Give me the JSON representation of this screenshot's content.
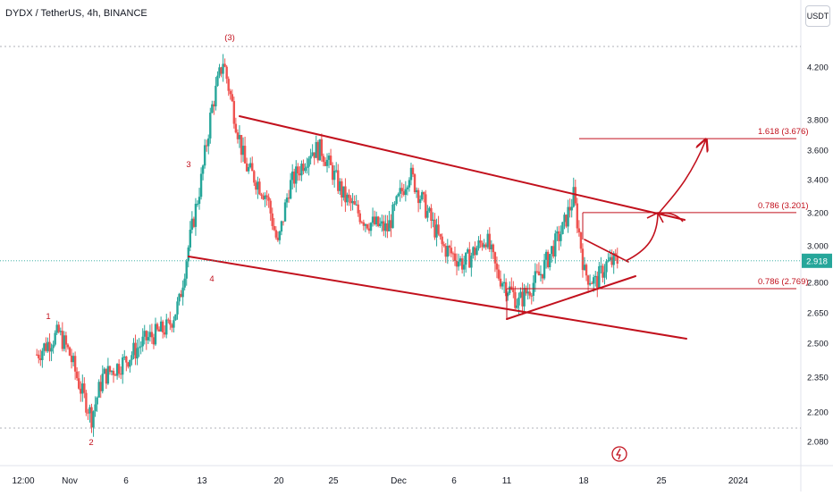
{
  "header": {
    "title": "DYDX / TetherUS, 4h, BINANCE",
    "currency_button": "USDT"
  },
  "price_axis": {
    "ticks": [
      "4.200",
      "3.800",
      "3.600",
      "3.400",
      "3.200",
      "3.000",
      "2.800",
      "2.650",
      "2.500",
      "2.350",
      "2.200",
      "2.080"
    ],
    "current_price": "2.918"
  },
  "time_axis": {
    "ticks": [
      "12:00",
      "Nov",
      "6",
      "13",
      "20",
      "25",
      "Dec",
      "6",
      "11",
      "18",
      "25",
      "2024"
    ]
  },
  "waves": {
    "w1": "1",
    "w2": "2",
    "w3": "3",
    "w4": "4",
    "wave3_top": "(3)"
  },
  "fib_levels": [
    {
      "label": "1.618 (3.676)",
      "price": 3.676
    },
    {
      "label": "0.786 (3.201)",
      "price": 3.201
    },
    {
      "label": "0.786 (2.769)",
      "price": 2.769
    }
  ],
  "colors": {
    "up": "#26a69a",
    "down": "#ef5350",
    "annotation": "#c2111d",
    "current": "#26a69a"
  },
  "chart_data": {
    "type": "candlestick",
    "title": "DYDX / TetherUS, 4h, BINANCE",
    "x_labels": [
      "12:00",
      "Nov",
      "6",
      "13",
      "20",
      "25",
      "Dec",
      "6",
      "11",
      "18",
      "25",
      "2024"
    ],
    "y_ticks": [
      4.2,
      3.8,
      3.6,
      3.4,
      3.2,
      3.0,
      2.8,
      2.65,
      2.5,
      2.35,
      2.2,
      2.08
    ],
    "y_scale": "log",
    "ylim": [
      2.05,
      4.35
    ],
    "current_price": 2.918,
    "price_path": [
      [
        "Oct 29",
        2.45
      ],
      [
        "Oct 30",
        2.5
      ],
      [
        "Oct 31",
        2.55
      ],
      [
        "Nov 1",
        2.45
      ],
      [
        "Nov 2",
        2.3
      ],
      [
        "Nov 3",
        2.18
      ],
      [
        "Nov 4",
        2.35
      ],
      [
        "Nov 6",
        2.42
      ],
      [
        "Nov 8",
        2.52
      ],
      [
        "Nov 10",
        2.58
      ],
      [
        "Nov 11",
        2.7
      ],
      [
        "Nov 12",
        3.05
      ],
      [
        "Nov 13",
        3.4
      ],
      [
        "Nov 14",
        3.9
      ],
      [
        "Nov 15",
        4.25
      ],
      [
        "Nov 16",
        3.85
      ],
      [
        "Nov 17",
        3.5
      ],
      [
        "Nov 19",
        3.3
      ],
      [
        "Nov 20",
        3.0
      ],
      [
        "Nov 21",
        3.35
      ],
      [
        "Nov 23",
        3.6
      ],
      [
        "Nov 24",
        3.6
      ],
      [
        "Nov 26",
        3.3
      ],
      [
        "Nov 28",
        3.15
      ],
      [
        "Nov 30",
        3.1
      ],
      [
        "Dec 2",
        3.45
      ],
      [
        "Dec 3",
        3.3
      ],
      [
        "Dec 5",
        3.0
      ],
      [
        "Dec 7",
        2.9
      ],
      [
        "Dec 9",
        3.05
      ],
      [
        "Dec 10",
        2.85
      ],
      [
        "Dec 12",
        2.7
      ],
      [
        "Dec 14",
        2.85
      ],
      [
        "Dec 16",
        3.1
      ],
      [
        "Dec 17",
        3.3
      ],
      [
        "Dec 18",
        2.85
      ],
      [
        "Dec 19",
        2.8
      ],
      [
        "Dec 20",
        2.9
      ],
      [
        "Dec 21",
        2.918
      ]
    ],
    "annotations": {
      "fib_levels": [
        3.676,
        3.201,
        2.769
      ],
      "wave_labels": [
        "1",
        "2",
        "3",
        "4",
        "(3)"
      ],
      "projection": "curved arrow from about 2.92 through about 3.20 up to about 3.67"
    }
  }
}
